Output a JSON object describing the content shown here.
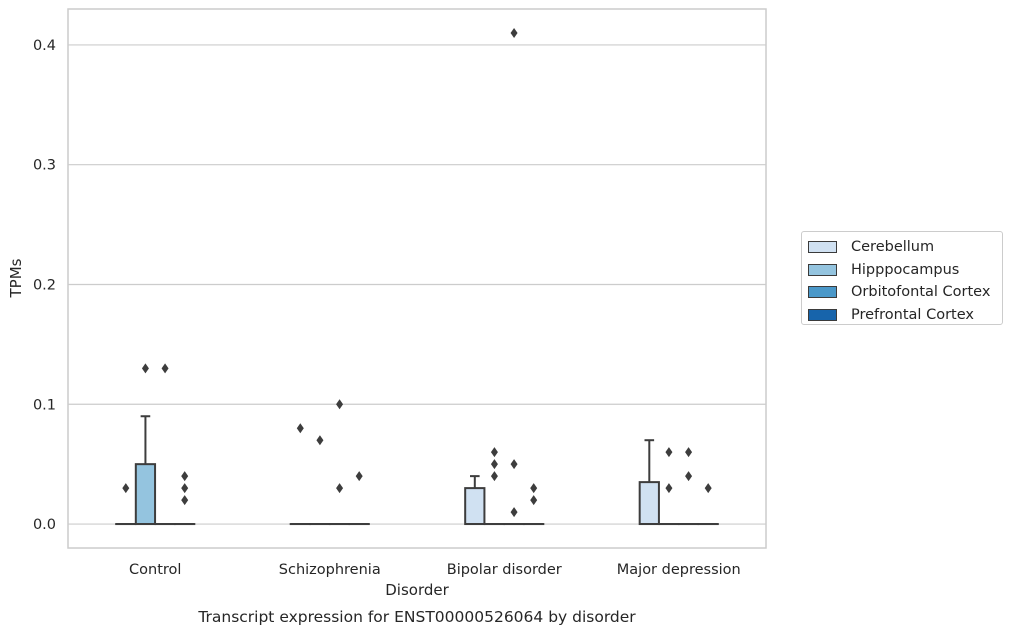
{
  "chart_data": {
    "type": "box",
    "title": "",
    "caption": "Transcript expression for ENST00000526064 by disorder",
    "xlabel": "Disorder",
    "ylabel": "TPMs",
    "ylim": [
      -0.02,
      0.43
    ],
    "yticks": [
      0.0,
      0.1,
      0.2,
      0.3,
      0.4
    ],
    "ytick_labels": [
      "0.0",
      "0.1",
      "0.2",
      "0.3",
      "0.4"
    ],
    "grid": "horizontal",
    "legend_position": "right",
    "categories": [
      "Control",
      "Schizophrenia",
      "Bipolar disorder",
      "Major depression"
    ],
    "series": [
      {
        "name": "Cerebellum",
        "color": "#d0e1f2",
        "boxes": [
          {
            "q1": 0,
            "median": 0,
            "q3": 0,
            "whisker_low": 0,
            "whisker_high": 0,
            "outliers": [
              0.03
            ]
          },
          {
            "q1": 0,
            "median": 0,
            "q3": 0,
            "whisker_low": 0,
            "whisker_high": 0,
            "outliers": [
              0.08
            ]
          },
          {
            "q1": 0,
            "median": 0,
            "q3": 0.03,
            "whisker_low": 0,
            "whisker_high": 0.04,
            "outliers": []
          },
          {
            "q1": 0,
            "median": 0,
            "q3": 0.035,
            "whisker_low": 0,
            "whisker_high": 0.07,
            "outliers": []
          }
        ]
      },
      {
        "name": "Hipppocampus",
        "color": "#94c4df",
        "boxes": [
          {
            "q1": 0,
            "median": 0,
            "q3": 0.05,
            "whisker_low": 0,
            "whisker_high": 0.09,
            "outliers": [
              0.13
            ]
          },
          {
            "q1": 0,
            "median": 0,
            "q3": 0,
            "whisker_low": 0,
            "whisker_high": 0,
            "outliers": [
              0.07
            ]
          },
          {
            "q1": 0,
            "median": 0,
            "q3": 0,
            "whisker_low": 0,
            "whisker_high": 0,
            "outliers": [
              0.04,
              0.05,
              0.06
            ]
          },
          {
            "q1": 0,
            "median": 0,
            "q3": 0,
            "whisker_low": 0,
            "whisker_high": 0,
            "outliers": [
              0.03,
              0.06
            ]
          }
        ]
      },
      {
        "name": "Orbitofontal Cortex",
        "color": "#4a98c9",
        "boxes": [
          {
            "q1": 0,
            "median": 0,
            "q3": 0,
            "whisker_low": 0,
            "whisker_high": 0,
            "outliers": [
              0.13
            ]
          },
          {
            "q1": 0,
            "median": 0,
            "q3": 0,
            "whisker_low": 0,
            "whisker_high": 0,
            "outliers": [
              0.03,
              0.1
            ]
          },
          {
            "q1": 0,
            "median": 0,
            "q3": 0,
            "whisker_low": 0,
            "whisker_high": 0,
            "outliers": [
              0.01,
              0.05,
              0.41
            ]
          },
          {
            "q1": 0,
            "median": 0,
            "q3": 0,
            "whisker_low": 0,
            "whisker_high": 0,
            "outliers": [
              0.04,
              0.06
            ]
          }
        ]
      },
      {
        "name": "Prefrontal Cortex",
        "color": "#1764ab",
        "boxes": [
          {
            "q1": 0,
            "median": 0,
            "q3": 0,
            "whisker_low": 0,
            "whisker_high": 0,
            "outliers": [
              0.02,
              0.03,
              0.04
            ]
          },
          {
            "q1": 0,
            "median": 0,
            "q3": 0,
            "whisker_low": 0,
            "whisker_high": 0,
            "outliers": [
              0.04
            ]
          },
          {
            "q1": 0,
            "median": 0,
            "q3": 0,
            "whisker_low": 0,
            "whisker_high": 0,
            "outliers": [
              0.02,
              0.03
            ]
          },
          {
            "q1": 0,
            "median": 0,
            "q3": 0,
            "whisker_low": 0,
            "whisker_high": 0,
            "outliers": [
              0.03
            ]
          }
        ]
      }
    ]
  }
}
